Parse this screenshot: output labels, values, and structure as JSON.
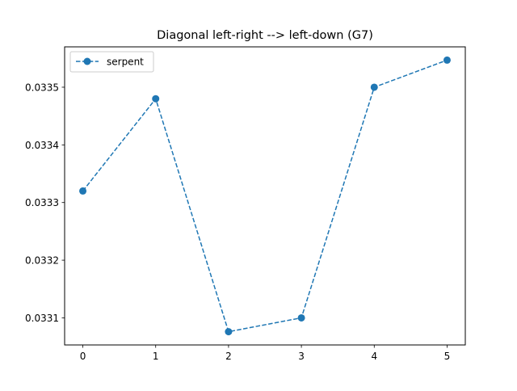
{
  "chart_data": {
    "type": "line",
    "title": "Diagonal left-right --> left-down (G7)",
    "xlabel": "",
    "ylabel": "",
    "x": [
      0,
      1,
      2,
      3,
      4,
      5
    ],
    "series": [
      {
        "name": "serpent",
        "values": [
          0.03332,
          0.03348,
          0.033076,
          0.0331,
          0.0335,
          0.033547
        ],
        "color": "#1f77b4",
        "line_style": "dashed",
        "marker": "circle"
      }
    ],
    "xticks": [
      0,
      1,
      2,
      3,
      4,
      5
    ],
    "xtick_labels": [
      "0",
      "1",
      "2",
      "3",
      "4",
      "5"
    ],
    "yticks": [
      0.0331,
      0.0332,
      0.0333,
      0.0334,
      0.0335
    ],
    "ytick_labels": [
      "0.0331",
      "0.0332",
      "0.0333",
      "0.0334",
      "0.0335"
    ],
    "xlim": [
      -0.25,
      5.25
    ],
    "ylim": [
      0.033053,
      0.03357
    ],
    "grid": false,
    "legend_position": "upper-left"
  }
}
